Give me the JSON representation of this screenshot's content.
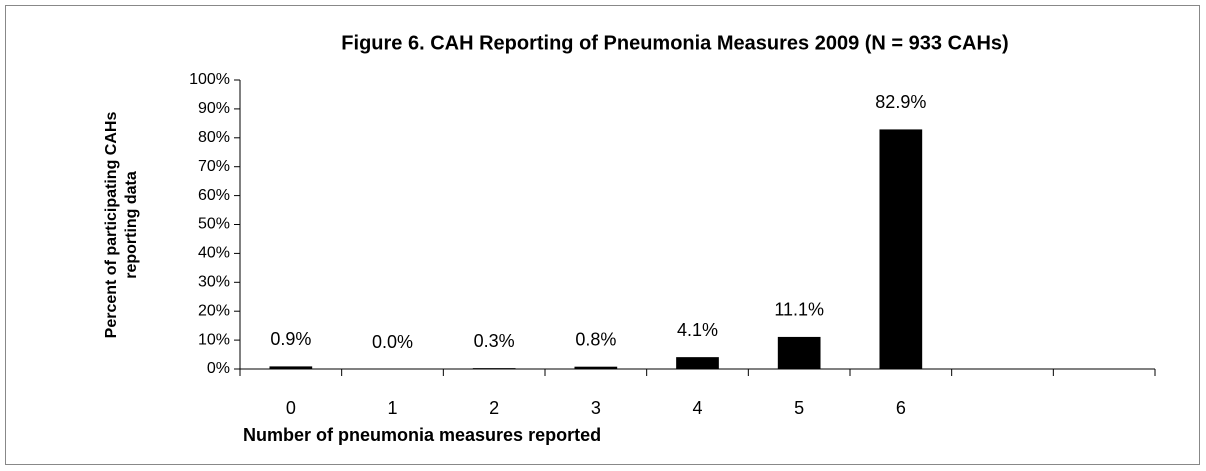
{
  "chart_data": {
    "type": "bar",
    "title": "Figure 6. CAH Reporting of Pneumonia Measures 2009 (N = 933 CAHs)",
    "x_label": "Number of pneumonia measures reported",
    "y_label": [
      "Percent of participating CAHs",
      "reporting data"
    ],
    "categories": [
      "0",
      "1",
      "2",
      "3",
      "4",
      "5",
      "6",
      null,
      null
    ],
    "values": [
      0.9,
      0.0,
      0.3,
      0.8,
      4.1,
      11.1,
      82.9,
      null,
      null
    ],
    "value_labels": [
      "0.9%",
      "0.0%",
      "0.3%",
      "0.8%",
      "4.1%",
      "11.1%",
      "82.9%",
      null,
      null
    ],
    "color": "#000000",
    "ylim": [
      0,
      100
    ],
    "yticks": [
      {
        "value": 0,
        "label": "0%"
      },
      {
        "value": 10,
        "label": "10%"
      },
      {
        "value": 20,
        "label": "20%"
      },
      {
        "value": 30,
        "label": "30%"
      },
      {
        "value": 40,
        "label": "40%"
      },
      {
        "value": 50,
        "label": "50%"
      },
      {
        "value": 60,
        "label": "60%"
      },
      {
        "value": 70,
        "label": "70%"
      },
      {
        "value": 80,
        "label": "80%"
      },
      {
        "value": 90,
        "label": "90%"
      },
      {
        "value": 100,
        "label": "100%"
      }
    ],
    "grid": false
  }
}
